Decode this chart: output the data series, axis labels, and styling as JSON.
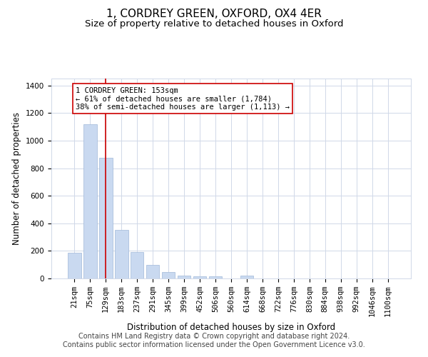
{
  "title": "1, CORDREY GREEN, OXFORD, OX4 4ER",
  "subtitle": "Size of property relative to detached houses in Oxford",
  "xlabel": "Distribution of detached houses by size in Oxford",
  "ylabel": "Number of detached properties",
  "footer_line1": "Contains HM Land Registry data © Crown copyright and database right 2024.",
  "footer_line2": "Contains public sector information licensed under the Open Government Licence v3.0.",
  "bar_labels": [
    "21sqm",
    "75sqm",
    "129sqm",
    "183sqm",
    "237sqm",
    "291sqm",
    "345sqm",
    "399sqm",
    "452sqm",
    "506sqm",
    "560sqm",
    "614sqm",
    "668sqm",
    "722sqm",
    "776sqm",
    "830sqm",
    "884sqm",
    "938sqm",
    "992sqm",
    "1046sqm",
    "1100sqm"
  ],
  "bar_values": [
    185,
    1120,
    875,
    350,
    190,
    100,
    48,
    22,
    18,
    13,
    0,
    22,
    0,
    0,
    0,
    0,
    0,
    0,
    0,
    0,
    0
  ],
  "bar_color": "#c9d9f0",
  "bar_edge_color": "#a0b8d8",
  "grid_color": "#d0d8e8",
  "annotation_text": "1 CORDREY GREEN: 153sqm\n← 61% of detached houses are smaller (1,784)\n38% of semi-detached houses are larger (1,113) →",
  "annotation_box_color": "#ffffff",
  "annotation_box_edge": "#cc0000",
  "vline_x": 2,
  "vline_color": "#cc0000",
  "ylim": [
    0,
    1450
  ],
  "yticks": [
    0,
    200,
    400,
    600,
    800,
    1000,
    1200,
    1400
  ],
  "background_color": "#ffffff",
  "title_fontsize": 11,
  "subtitle_fontsize": 9.5,
  "axis_fontsize": 8.5,
  "tick_fontsize": 7.5,
  "footer_fontsize": 7,
  "annot_fontsize": 7.5
}
